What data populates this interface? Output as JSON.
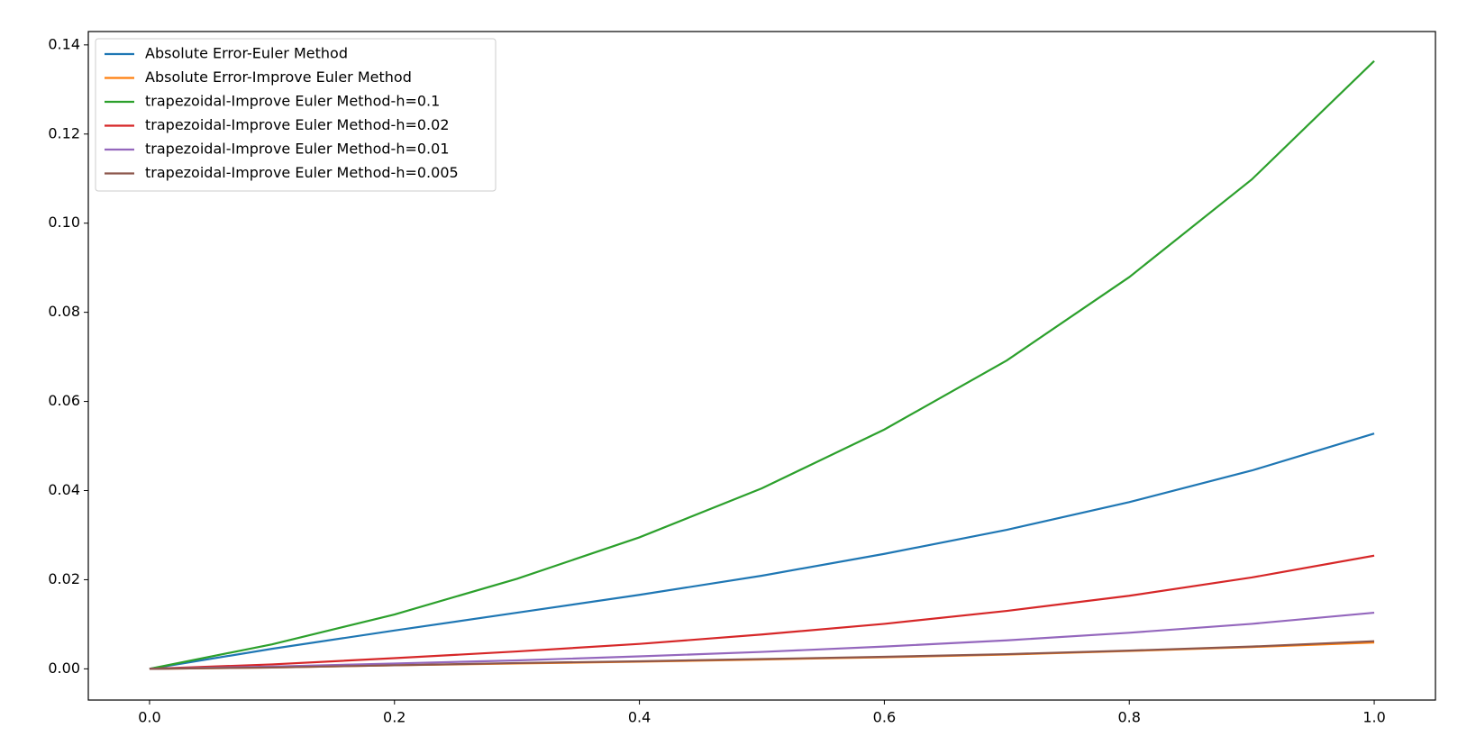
{
  "chart_data": {
    "type": "line",
    "x": [
      0,
      0.1,
      0.2,
      0.3,
      0.4,
      0.5,
      0.6,
      0.7,
      0.8,
      0.9,
      1.0
    ],
    "series": [
      {
        "name": "Absolute Error-Euler Method",
        "color": "#1f77b4",
        "values": [
          0,
          0.0045,
          0.0086,
          0.0126,
          0.0166,
          0.0209,
          0.0258,
          0.0312,
          0.0374,
          0.0445,
          0.0528
        ]
      },
      {
        "name": "Absolute Error-Improve Euler Method",
        "color": "#ff7f0e",
        "values": [
          0,
          0.0003,
          0.0008,
          0.0012,
          0.0016,
          0.0021,
          0.0026,
          0.0032,
          0.004,
          0.0049,
          0.0059
        ]
      },
      {
        "name": "trapezoidal-Improve Euler Method-h=0.1",
        "color": "#2ca02c",
        "values": [
          0,
          0.0055,
          0.0122,
          0.0202,
          0.0295,
          0.0405,
          0.0537,
          0.0692,
          0.0879,
          0.1098,
          0.1364
        ]
      },
      {
        "name": "trapezoidal-Improve Euler Method-h=0.02",
        "color": "#d62728",
        "values": [
          0,
          0.001,
          0.0024,
          0.0039,
          0.0056,
          0.0077,
          0.0101,
          0.013,
          0.0164,
          0.0205,
          0.0254
        ]
      },
      {
        "name": "trapezoidal-Improve Euler Method-h=0.01",
        "color": "#9467bd",
        "values": [
          0,
          0.0005,
          0.0012,
          0.0019,
          0.0028,
          0.0038,
          0.005,
          0.0064,
          0.0081,
          0.0101,
          0.0126
        ]
      },
      {
        "name": "trapezoidal-Improve Euler Method-h=0.005",
        "color": "#8c564b",
        "values": [
          0,
          0.0003,
          0.0008,
          0.0013,
          0.0017,
          0.0022,
          0.0027,
          0.0033,
          0.0041,
          0.005,
          0.0062
        ]
      }
    ],
    "xlim": [
      -0.05,
      1.05
    ],
    "ylim": [
      -0.007,
      0.143
    ],
    "xticks": [
      {
        "value": 0,
        "label": "0.0"
      },
      {
        "value": 0.2,
        "label": "0.2"
      },
      {
        "value": 0.4,
        "label": "0.4"
      },
      {
        "value": 0.6,
        "label": "0.6"
      },
      {
        "value": 0.8,
        "label": "0.8"
      },
      {
        "value": 1.0,
        "label": "1.0"
      }
    ],
    "yticks": [
      {
        "value": 0,
        "label": "0.00"
      },
      {
        "value": 0.02,
        "label": "0.02"
      },
      {
        "value": 0.04,
        "label": "0.04"
      },
      {
        "value": 0.06,
        "label": "0.06"
      },
      {
        "value": 0.08,
        "label": "0.08"
      },
      {
        "value": 0.1,
        "label": "0.10"
      },
      {
        "value": 0.12,
        "label": "0.12"
      },
      {
        "value": 0.14,
        "label": "0.14"
      }
    ],
    "legend": "upper left",
    "grid": false
  }
}
